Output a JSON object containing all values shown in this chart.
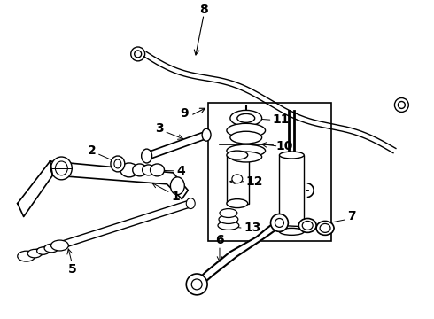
{
  "bg_color": "#ffffff",
  "line_color": "#000000",
  "figsize": [
    4.9,
    3.6
  ],
  "dpi": 100,
  "label_fontsize": 9,
  "label_fontweight": "bold"
}
